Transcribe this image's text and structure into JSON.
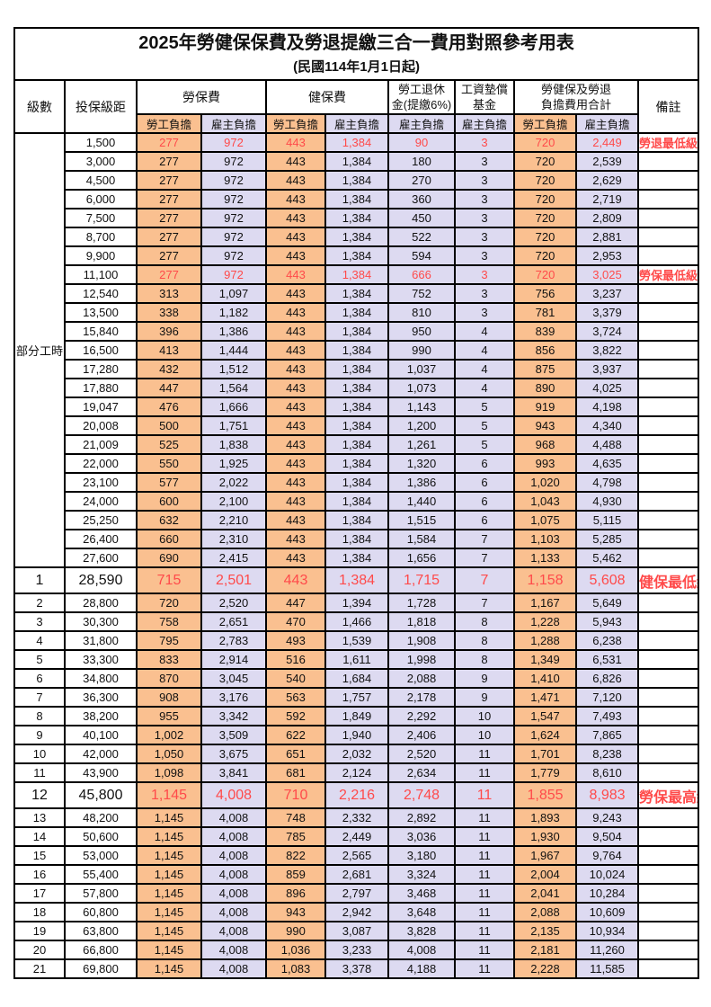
{
  "title": "2025年勞健保保費及勞退提繳三合一費用對照參考用表",
  "subtitle": "(民國114年1月1日起)",
  "colors": {
    "employee_share_bg": "#FAC090",
    "employer_share_bg": "#DDDAF1",
    "highlight_text": "#FF4A4A",
    "border": "#000000"
  },
  "header": {
    "level": "級數",
    "bracket": "投保級距",
    "labor_group": "勞保費",
    "health_group": "健保費",
    "pension_line1": "勞工退休",
    "pension_line2": "金(提繳6%)",
    "wage_fund_line1": "工資墊償",
    "wage_fund_line2": "基金",
    "total_line1": "勞健保及勞退",
    "total_line2": "負擔費用合計",
    "note": "備註",
    "employee_share": "勞工負擔",
    "employer_share": "雇主負擔"
  },
  "table": {
    "part_time_label": "部分工時",
    "part_time_rowspan": 23,
    "rows": [
      {
        "lv": "",
        "br": "1,500",
        "v": [
          "277",
          "972",
          "443",
          "1,384",
          "90",
          "3",
          "720",
          "2,449"
        ],
        "note": "勞退最低級距",
        "red": true,
        "big": false
      },
      {
        "lv": "",
        "br": "3,000",
        "v": [
          "277",
          "972",
          "443",
          "1,384",
          "180",
          "3",
          "720",
          "2,539"
        ],
        "note": "",
        "red": false,
        "big": false
      },
      {
        "lv": "",
        "br": "4,500",
        "v": [
          "277",
          "972",
          "443",
          "1,384",
          "270",
          "3",
          "720",
          "2,629"
        ],
        "note": "",
        "red": false,
        "big": false
      },
      {
        "lv": "",
        "br": "6,000",
        "v": [
          "277",
          "972",
          "443",
          "1,384",
          "360",
          "3",
          "720",
          "2,719"
        ],
        "note": "",
        "red": false,
        "big": false
      },
      {
        "lv": "",
        "br": "7,500",
        "v": [
          "277",
          "972",
          "443",
          "1,384",
          "450",
          "3",
          "720",
          "2,809"
        ],
        "note": "",
        "red": false,
        "big": false
      },
      {
        "lv": "",
        "br": "8,700",
        "v": [
          "277",
          "972",
          "443",
          "1,384",
          "522",
          "3",
          "720",
          "2,881"
        ],
        "note": "",
        "red": false,
        "big": false
      },
      {
        "lv": "",
        "br": "9,900",
        "v": [
          "277",
          "972",
          "443",
          "1,384",
          "594",
          "3",
          "720",
          "2,953"
        ],
        "note": "",
        "red": false,
        "big": false
      },
      {
        "lv": "",
        "br": "11,100",
        "v": [
          "277",
          "972",
          "443",
          "1,384",
          "666",
          "3",
          "720",
          "3,025"
        ],
        "note": "勞保最低級距",
        "red": true,
        "big": false
      },
      {
        "lv": "",
        "br": "12,540",
        "v": [
          "313",
          "1,097",
          "443",
          "1,384",
          "752",
          "3",
          "756",
          "3,237"
        ],
        "note": "",
        "red": false,
        "big": false
      },
      {
        "lv": "",
        "br": "13,500",
        "v": [
          "338",
          "1,182",
          "443",
          "1,384",
          "810",
          "3",
          "781",
          "3,379"
        ],
        "note": "",
        "red": false,
        "big": false
      },
      {
        "lv": "",
        "br": "15,840",
        "v": [
          "396",
          "1,386",
          "443",
          "1,384",
          "950",
          "4",
          "839",
          "3,724"
        ],
        "note": "",
        "red": false,
        "big": false
      },
      {
        "lv": "",
        "br": "16,500",
        "v": [
          "413",
          "1,444",
          "443",
          "1,384",
          "990",
          "4",
          "856",
          "3,822"
        ],
        "note": "",
        "red": false,
        "big": false
      },
      {
        "lv": "",
        "br": "17,280",
        "v": [
          "432",
          "1,512",
          "443",
          "1,384",
          "1,037",
          "4",
          "875",
          "3,937"
        ],
        "note": "",
        "red": false,
        "big": false
      },
      {
        "lv": "",
        "br": "17,880",
        "v": [
          "447",
          "1,564",
          "443",
          "1,384",
          "1,073",
          "4",
          "890",
          "4,025"
        ],
        "note": "",
        "red": false,
        "big": false
      },
      {
        "lv": "",
        "br": "19,047",
        "v": [
          "476",
          "1,666",
          "443",
          "1,384",
          "1,143",
          "5",
          "919",
          "4,198"
        ],
        "note": "",
        "red": false,
        "big": false
      },
      {
        "lv": "",
        "br": "20,008",
        "v": [
          "500",
          "1,751",
          "443",
          "1,384",
          "1,200",
          "5",
          "943",
          "4,340"
        ],
        "note": "",
        "red": false,
        "big": false
      },
      {
        "lv": "",
        "br": "21,009",
        "v": [
          "525",
          "1,838",
          "443",
          "1,384",
          "1,261",
          "5",
          "968",
          "4,488"
        ],
        "note": "",
        "red": false,
        "big": false
      },
      {
        "lv": "",
        "br": "22,000",
        "v": [
          "550",
          "1,925",
          "443",
          "1,384",
          "1,320",
          "6",
          "993",
          "4,635"
        ],
        "note": "",
        "red": false,
        "big": false
      },
      {
        "lv": "",
        "br": "23,100",
        "v": [
          "577",
          "2,022",
          "443",
          "1,384",
          "1,386",
          "6",
          "1,020",
          "4,798"
        ],
        "note": "",
        "red": false,
        "big": false
      },
      {
        "lv": "",
        "br": "24,000",
        "v": [
          "600",
          "2,100",
          "443",
          "1,384",
          "1,440",
          "6",
          "1,043",
          "4,930"
        ],
        "note": "",
        "red": false,
        "big": false
      },
      {
        "lv": "",
        "br": "25,250",
        "v": [
          "632",
          "2,210",
          "443",
          "1,384",
          "1,515",
          "6",
          "1,075",
          "5,115"
        ],
        "note": "",
        "red": false,
        "big": false
      },
      {
        "lv": "",
        "br": "26,400",
        "v": [
          "660",
          "2,310",
          "443",
          "1,384",
          "1,584",
          "7",
          "1,103",
          "5,285"
        ],
        "note": "",
        "red": false,
        "big": false
      },
      {
        "lv": "",
        "br": "27,600",
        "v": [
          "690",
          "2,415",
          "443",
          "1,384",
          "1,656",
          "7",
          "1,133",
          "5,462"
        ],
        "note": "",
        "red": false,
        "big": false
      },
      {
        "lv": "1",
        "br": "28,590",
        "v": [
          "715",
          "2,501",
          "443",
          "1,384",
          "1,715",
          "7",
          "1,158",
          "5,608"
        ],
        "note": "健保最低級距",
        "red": true,
        "big": true
      },
      {
        "lv": "2",
        "br": "28,800",
        "v": [
          "720",
          "2,520",
          "447",
          "1,394",
          "1,728",
          "7",
          "1,167",
          "5,649"
        ],
        "note": "",
        "red": false,
        "big": false
      },
      {
        "lv": "3",
        "br": "30,300",
        "v": [
          "758",
          "2,651",
          "470",
          "1,466",
          "1,818",
          "8",
          "1,228",
          "5,943"
        ],
        "note": "",
        "red": false,
        "big": false
      },
      {
        "lv": "4",
        "br": "31,800",
        "v": [
          "795",
          "2,783",
          "493",
          "1,539",
          "1,908",
          "8",
          "1,288",
          "6,238"
        ],
        "note": "",
        "red": false,
        "big": false
      },
      {
        "lv": "5",
        "br": "33,300",
        "v": [
          "833",
          "2,914",
          "516",
          "1,611",
          "1,998",
          "8",
          "1,349",
          "6,531"
        ],
        "note": "",
        "red": false,
        "big": false
      },
      {
        "lv": "6",
        "br": "34,800",
        "v": [
          "870",
          "3,045",
          "540",
          "1,684",
          "2,088",
          "9",
          "1,410",
          "6,826"
        ],
        "note": "",
        "red": false,
        "big": false
      },
      {
        "lv": "7",
        "br": "36,300",
        "v": [
          "908",
          "3,176",
          "563",
          "1,757",
          "2,178",
          "9",
          "1,471",
          "7,120"
        ],
        "note": "",
        "red": false,
        "big": false
      },
      {
        "lv": "8",
        "br": "38,200",
        "v": [
          "955",
          "3,342",
          "592",
          "1,849",
          "2,292",
          "10",
          "1,547",
          "7,493"
        ],
        "note": "",
        "red": false,
        "big": false
      },
      {
        "lv": "9",
        "br": "40,100",
        "v": [
          "1,002",
          "3,509",
          "622",
          "1,940",
          "2,406",
          "10",
          "1,624",
          "7,865"
        ],
        "note": "",
        "red": false,
        "big": false
      },
      {
        "lv": "10",
        "br": "42,000",
        "v": [
          "1,050",
          "3,675",
          "651",
          "2,032",
          "2,520",
          "11",
          "1,701",
          "8,238"
        ],
        "note": "",
        "red": false,
        "big": false
      },
      {
        "lv": "11",
        "br": "43,900",
        "v": [
          "1,098",
          "3,841",
          "681",
          "2,124",
          "2,634",
          "11",
          "1,779",
          "8,610"
        ],
        "note": "",
        "red": false,
        "big": false
      },
      {
        "lv": "12",
        "br": "45,800",
        "v": [
          "1,145",
          "4,008",
          "710",
          "2,216",
          "2,748",
          "11",
          "1,855",
          "8,983"
        ],
        "note": "勞保最高級距",
        "red": true,
        "big": true
      },
      {
        "lv": "13",
        "br": "48,200",
        "v": [
          "1,145",
          "4,008",
          "748",
          "2,332",
          "2,892",
          "11",
          "1,893",
          "9,243"
        ],
        "note": "",
        "red": false,
        "big": false
      },
      {
        "lv": "14",
        "br": "50,600",
        "v": [
          "1,145",
          "4,008",
          "785",
          "2,449",
          "3,036",
          "11",
          "1,930",
          "9,504"
        ],
        "note": "",
        "red": false,
        "big": false
      },
      {
        "lv": "15",
        "br": "53,000",
        "v": [
          "1,145",
          "4,008",
          "822",
          "2,565",
          "3,180",
          "11",
          "1,967",
          "9,764"
        ],
        "note": "",
        "red": false,
        "big": false
      },
      {
        "lv": "16",
        "br": "55,400",
        "v": [
          "1,145",
          "4,008",
          "859",
          "2,681",
          "3,324",
          "11",
          "2,004",
          "10,024"
        ],
        "note": "",
        "red": false,
        "big": false
      },
      {
        "lv": "17",
        "br": "57,800",
        "v": [
          "1,145",
          "4,008",
          "896",
          "2,797",
          "3,468",
          "11",
          "2,041",
          "10,284"
        ],
        "note": "",
        "red": false,
        "big": false
      },
      {
        "lv": "18",
        "br": "60,800",
        "v": [
          "1,145",
          "4,008",
          "943",
          "2,942",
          "3,648",
          "11",
          "2,088",
          "10,609"
        ],
        "note": "",
        "red": false,
        "big": false
      },
      {
        "lv": "19",
        "br": "63,800",
        "v": [
          "1,145",
          "4,008",
          "990",
          "3,087",
          "3,828",
          "11",
          "2,135",
          "10,934"
        ],
        "note": "",
        "red": false,
        "big": false
      },
      {
        "lv": "20",
        "br": "66,800",
        "v": [
          "1,145",
          "4,008",
          "1,036",
          "3,233",
          "4,008",
          "11",
          "2,181",
          "11,260"
        ],
        "note": "",
        "red": false,
        "big": false
      },
      {
        "lv": "21",
        "br": "69,800",
        "v": [
          "1,145",
          "4,008",
          "1,083",
          "3,378",
          "4,188",
          "11",
          "2,228",
          "11,585"
        ],
        "note": "",
        "red": false,
        "big": false
      }
    ]
  }
}
